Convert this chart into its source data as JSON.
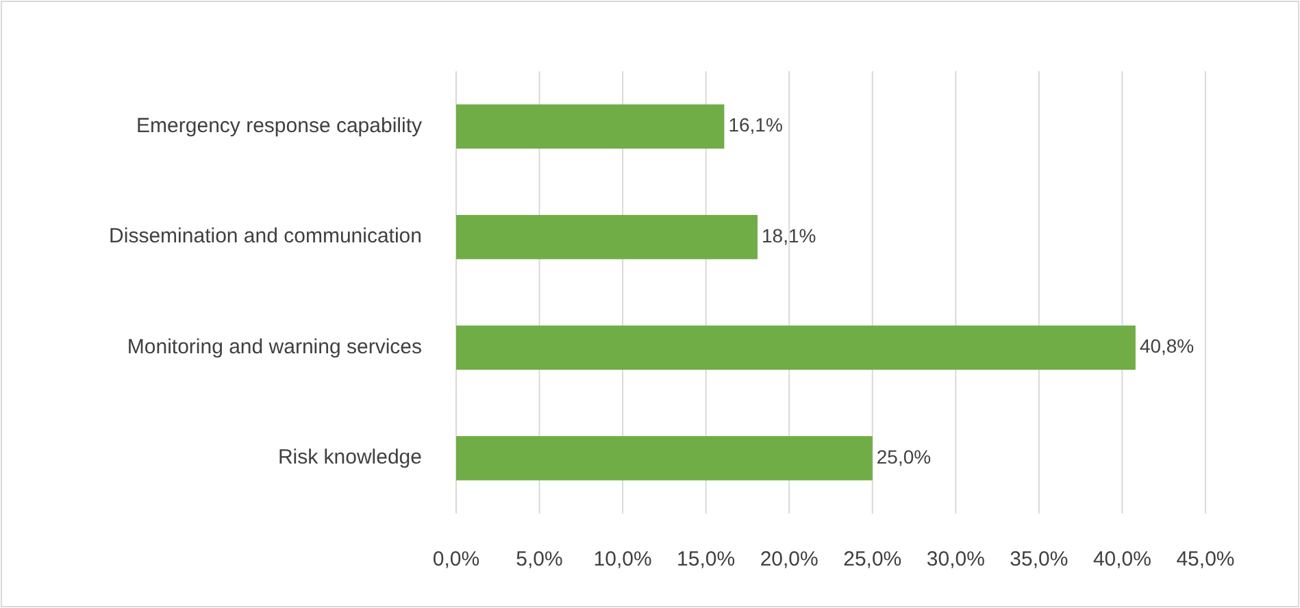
{
  "chart_data": {
    "type": "bar",
    "orientation": "horizontal",
    "categories": [
      "Emergency response capability",
      "Dissemination and communication",
      "Monitoring and warning services",
      "Risk knowledge"
    ],
    "values": [
      16.1,
      18.1,
      40.8,
      25.0
    ],
    "value_labels": [
      "16,1%",
      "18,1%",
      "40,8%",
      "25,0%"
    ],
    "color": "#70ad47",
    "xlim": [
      0,
      45
    ],
    "xticks": [
      {
        "value": 0,
        "label": "0,0%"
      },
      {
        "value": 5,
        "label": "5,0%"
      },
      {
        "value": 10,
        "label": "10,0%"
      },
      {
        "value": 15,
        "label": "15,0%"
      },
      {
        "value": 20,
        "label": "20,0%"
      },
      {
        "value": 25,
        "label": "25,0%"
      },
      {
        "value": 30,
        "label": "30,0%"
      },
      {
        "value": 35,
        "label": "35,0%"
      },
      {
        "value": 40,
        "label": "40,0%"
      },
      {
        "value": 45,
        "label": "45,0%"
      }
    ],
    "grid": "x"
  }
}
